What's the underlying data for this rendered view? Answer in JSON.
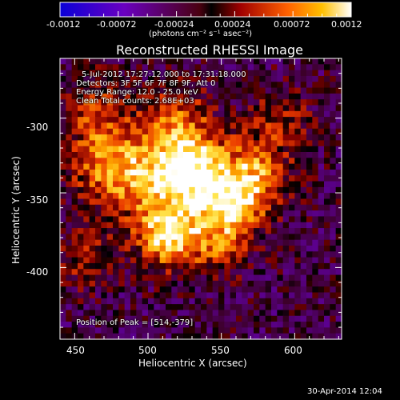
{
  "colorbar": {
    "ticks": [
      "-0.0012",
      "-0.00072",
      "-0.00024",
      "0.00024",
      "0.00072",
      "0.0012"
    ],
    "unit_label": "(photons cm⁻² s⁻¹ asec⁻²)",
    "range": [
      -0.0012,
      0.0012
    ]
  },
  "chart_data": {
    "type": "heatmap",
    "title": "Reconstructed RHESSI Image",
    "xlabel": "Heliocentric X (arcsec)",
    "ylabel": "Heliocentric Y (arcsec)",
    "xlim": [
      440,
      632
    ],
    "ylim": [
      -448,
      -260
    ],
    "xticks": [
      450,
      500,
      550,
      600
    ],
    "yticks": [
      -300,
      -350,
      -400
    ],
    "peak": [
      514,
      -379
    ],
    "annotations": [
      "5-Jul-2012 17:27:12.000 to 17:31:18.000",
      "Detectors: 3F 5F 6F 7F 8F 9F, Att 0",
      "Energy Range: 12.0 - 25.0 keV",
      "Clean    Total counts: 2.68E+03"
    ],
    "peak_label": "Position of Peak = [514,-379]"
  },
  "footer": {
    "timestamp": "30-Apr-2014 12:04"
  }
}
